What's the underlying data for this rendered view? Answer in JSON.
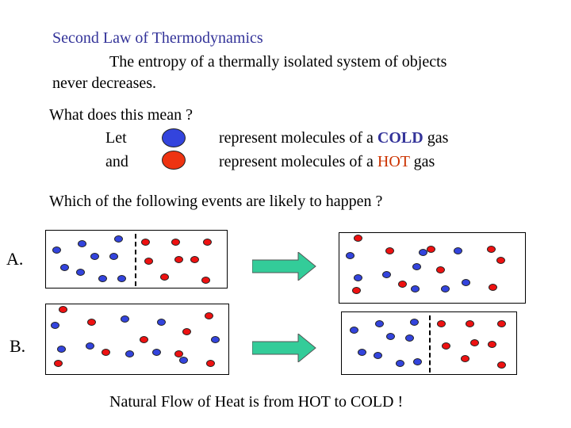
{
  "slide": {
    "title": "Second Law of Thermodynamics",
    "statement_line1": "The entropy of a thermally isolated system of objects",
    "statement_line2": "never decreases.",
    "question": "What does this mean ?",
    "legend_let": "Let",
    "legend_and": "and",
    "legend_cold_pre": "represent molecules of a ",
    "legend_cold_word": "COLD",
    "legend_cold_post": " gas",
    "legend_hot_pre": "represent molecules of a ",
    "legend_hot_word": "HOT",
    "legend_hot_post": " gas",
    "events_question": "Which of the following events are likely to happen ?",
    "option_a": "A.",
    "option_b": "B.",
    "conclusion": "Natural Flow of Heat is from HOT to COLD !"
  },
  "colors": {
    "title": "#333399",
    "cold": "#3344dd",
    "hot": "#ee1111",
    "arrow": "#33cc99"
  }
}
